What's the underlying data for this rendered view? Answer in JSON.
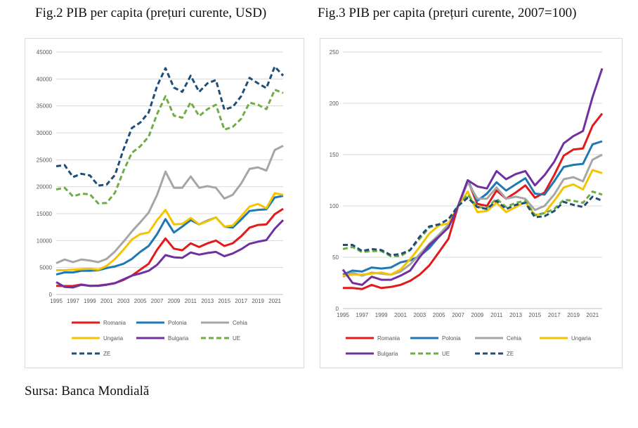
{
  "page": {
    "fig2_title": "Fig.2 PIB per capita (prețuri curente, USD)",
    "fig3_title": "Fig.3 PIB per capita (prețuri curente, 2007=100)",
    "source": "Sursa: Banca Mondială"
  },
  "chart_data": [
    {
      "type": "line",
      "title": "Fig.2 PIB per capita (prețuri curente, USD)",
      "xlabel": "",
      "ylabel": "",
      "xlim": [
        1995,
        2022
      ],
      "ylim": [
        0,
        45000
      ],
      "yticks": [
        0,
        5000,
        10000,
        15000,
        20000,
        25000,
        30000,
        35000,
        40000,
        45000
      ],
      "xticks": [
        1995,
        1997,
        1999,
        2001,
        2003,
        2005,
        2007,
        2009,
        2011,
        2013,
        2015,
        2017,
        2019,
        2021
      ],
      "grid": true,
      "legend": "bottom",
      "x": [
        1995,
        1996,
        1997,
        1998,
        1999,
        2000,
        2001,
        2002,
        2003,
        2004,
        2005,
        2006,
        2007,
        2008,
        2009,
        2010,
        2011,
        2012,
        2013,
        2014,
        2015,
        2016,
        2017,
        2018,
        2019,
        2020,
        2021,
        2022
      ],
      "series": [
        {
          "name": "Romania",
          "color": "#e31a1c",
          "dash": false,
          "values": [
            1600,
            1570,
            1580,
            1850,
            1600,
            1650,
            1850,
            2100,
            2700,
            3500,
            4600,
            5700,
            8300,
            10400,
            8500,
            8200,
            9500,
            8800,
            9500,
            10000,
            9000,
            9500,
            10800,
            12400,
            12900,
            13000,
            14900,
            15900
          ]
        },
        {
          "name": "Polonia",
          "color": "#1f78b4",
          "dash": false,
          "values": [
            3700,
            4100,
            4100,
            4400,
            4400,
            4500,
            4900,
            5200,
            5700,
            6600,
            7900,
            9000,
            11200,
            14000,
            11500,
            12600,
            13800,
            13000,
            13700,
            14300,
            12600,
            12400,
            13900,
            15500,
            15700,
            15800,
            18000,
            18300
          ]
        },
        {
          "name": "Cehia",
          "color": "#a6a6a6",
          "dash": false,
          "values": [
            5800,
            6500,
            6000,
            6500,
            6300,
            6000,
            6600,
            8000,
            9800,
            11700,
            13400,
            15200,
            18500,
            22800,
            19800,
            19800,
            21900,
            19800,
            20100,
            19800,
            17800,
            18500,
            20600,
            23300,
            23600,
            23000,
            26800,
            27600
          ]
        },
        {
          "name": "Ungaria",
          "color": "#f5c400",
          "dash": false,
          "values": [
            4500,
            4500,
            4600,
            4700,
            4800,
            4600,
            5300,
            6600,
            8300,
            10200,
            11200,
            11500,
            13800,
            15700,
            13000,
            13100,
            14200,
            13000,
            13600,
            14300,
            12600,
            12800,
            14500,
            16300,
            16800,
            16000,
            18800,
            18500
          ]
        },
        {
          "name": "Bulgaria",
          "color": "#7030a0",
          "dash": false,
          "values": [
            2300,
            1400,
            1300,
            1800,
            1600,
            1600,
            1800,
            2100,
            2800,
            3500,
            3900,
            4400,
            5500,
            7300,
            6900,
            6800,
            7800,
            7400,
            7700,
            7900,
            7100,
            7600,
            8400,
            9400,
            9800,
            10100,
            12200,
            13800
          ]
        },
        {
          "name": "UE",
          "color": "#70ad47",
          "dash": true,
          "values": [
            19500,
            19800,
            18200,
            18700,
            18600,
            16900,
            17000,
            18900,
            22900,
            26300,
            27500,
            29300,
            33500,
            36800,
            33200,
            32800,
            35700,
            33100,
            34400,
            35200,
            30600,
            31100,
            32600,
            35600,
            35200,
            34400,
            38000,
            37400
          ]
        },
        {
          "name": "ZE",
          "color": "#1f4e79",
          "dash": true,
          "values": [
            23800,
            24000,
            21800,
            22400,
            22100,
            20200,
            20400,
            22200,
            26900,
            30900,
            31900,
            33800,
            38700,
            42000,
            38400,
            37600,
            40600,
            37600,
            39200,
            39800,
            34300,
            34800,
            36800,
            40200,
            39200,
            38300,
            42300,
            40600
          ]
        }
      ]
    },
    {
      "type": "line",
      "title": "Fig.3 PIB per capita (prețuri curente, 2007=100)",
      "xlabel": "",
      "ylabel": "",
      "xlim": [
        1995,
        2022
      ],
      "ylim": [
        0,
        250
      ],
      "yticks": [
        0,
        50,
        100,
        150,
        200,
        250
      ],
      "xticks": [
        1995,
        1997,
        1999,
        2001,
        2003,
        2005,
        2007,
        2009,
        2011,
        2013,
        2015,
        2017,
        2019,
        2021
      ],
      "grid": true,
      "legend": "bottom",
      "x": [
        1995,
        1996,
        1997,
        1998,
        1999,
        2000,
        2001,
        2002,
        2003,
        2004,
        2005,
        2006,
        2007,
        2008,
        2009,
        2010,
        2011,
        2012,
        2013,
        2014,
        2015,
        2016,
        2017,
        2018,
        2019,
        2020,
        2021,
        2022
      ],
      "series": [
        {
          "name": "Romania",
          "color": "#e31a1c",
          "dash": false,
          "values": [
            20,
            20,
            19,
            23,
            20,
            21,
            23,
            27,
            33,
            42,
            55,
            68,
            100,
            125,
            102,
            100,
            115,
            107,
            113,
            120,
            108,
            113,
            130,
            149,
            155,
            156,
            178,
            190
          ]
        },
        {
          "name": "Polonia",
          "color": "#1f78b4",
          "dash": false,
          "values": [
            33,
            37,
            36,
            40,
            39,
            40,
            45,
            47,
            51,
            59,
            70,
            80,
            100,
            125,
            105,
            112,
            123,
            115,
            121,
            127,
            112,
            111,
            124,
            138,
            140,
            141,
            160,
            163
          ]
        },
        {
          "name": "Cehia",
          "color": "#a6a6a6",
          "dash": false,
          "values": [
            31,
            35,
            32,
            35,
            34,
            33,
            36,
            43,
            53,
            63,
            72,
            82,
            100,
            123,
            107,
            107,
            118,
            107,
            109,
            107,
            96,
            100,
            111,
            126,
            128,
            124,
            145,
            150
          ]
        },
        {
          "name": "Ungaria",
          "color": "#f5c400",
          "dash": false,
          "values": [
            32,
            33,
            33,
            34,
            35,
            33,
            38,
            48,
            60,
            73,
            81,
            83,
            100,
            114,
            94,
            95,
            103,
            94,
            99,
            104,
            91,
            93,
            105,
            118,
            121,
            116,
            135,
            132
          ]
        },
        {
          "name": "Bulgaria",
          "color": "#7030a0",
          "dash": false,
          "values": [
            38,
            25,
            23,
            31,
            28,
            28,
            32,
            37,
            50,
            62,
            70,
            79,
            100,
            125,
            119,
            117,
            134,
            126,
            131,
            134,
            120,
            130,
            143,
            161,
            168,
            173,
            206,
            234
          ]
        },
        {
          "name": "UE",
          "color": "#70ad47",
          "dash": true,
          "values": [
            58,
            60,
            55,
            56,
            56,
            51,
            51,
            57,
            68,
            79,
            82,
            87,
            100,
            111,
            99,
            98,
            107,
            99,
            103,
            105,
            91,
            93,
            97,
            106,
            105,
            103,
            114,
            111
          ]
        },
        {
          "name": "ZE",
          "color": "#1f4e79",
          "dash": true,
          "values": [
            62,
            62,
            56,
            58,
            57,
            52,
            53,
            57,
            70,
            80,
            82,
            87,
            100,
            108,
            99,
            97,
            105,
            97,
            101,
            103,
            89,
            90,
            95,
            104,
            101,
            99,
            109,
            105
          ]
        }
      ]
    }
  ]
}
